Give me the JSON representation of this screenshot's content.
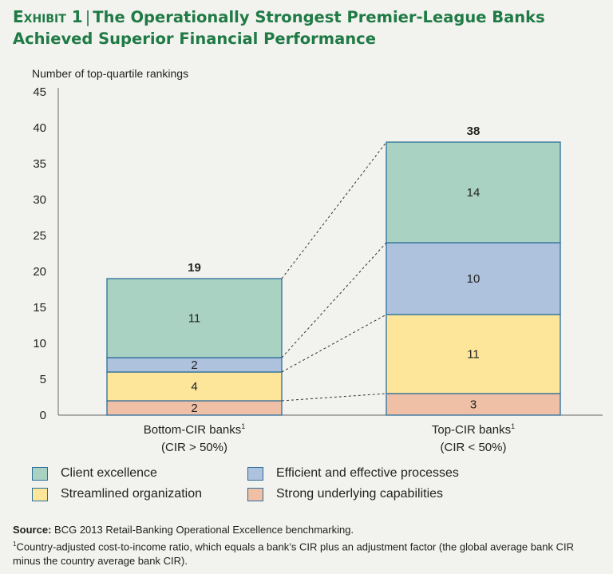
{
  "title": {
    "exhibit": "Exhibit 1",
    "separator": "|",
    "text": "The Operationally Strongest Premier-League Banks Achieved Superior Financial Performance"
  },
  "colors": {
    "client": "#a9d2c3",
    "processes": "#aec2de",
    "organization": "#fde69a",
    "capabilities": "#efbfa6",
    "outline": "#2e6f9a",
    "title": "#1f7a45"
  },
  "chart_data": {
    "type": "bar",
    "stacked": true,
    "ylabel": "Number of top-quartile rankings",
    "ylim": [
      0,
      45
    ],
    "yticks": [
      0,
      5,
      10,
      15,
      20,
      25,
      30,
      35,
      40,
      45
    ],
    "categories": [
      {
        "label": "Bottom-CIR banks",
        "note": "1",
        "sublabel": "(CIR > 50%)",
        "total": "19"
      },
      {
        "label": "Top-CIR banks",
        "note": "1",
        "sublabel": "(CIR < 50%)",
        "total": "38"
      }
    ],
    "series": [
      {
        "name": "Strong underlying capabilities",
        "key": "capabilities",
        "values": [
          2,
          3
        ],
        "labels": [
          "2",
          "3"
        ]
      },
      {
        "name": "Streamlined organization",
        "key": "organization",
        "values": [
          4,
          11
        ],
        "labels": [
          "4",
          "11"
        ]
      },
      {
        "name": "Efficient and effective processes",
        "key": "processes",
        "values": [
          2,
          10
        ],
        "labels": [
          "2",
          "10"
        ]
      },
      {
        "name": "Client excellence",
        "key": "client",
        "values": [
          11,
          14
        ],
        "labels": [
          "11",
          "14"
        ]
      }
    ]
  },
  "legend": [
    {
      "label": "Client excellence",
      "key": "client"
    },
    {
      "label": "Efficient and effective processes",
      "key": "processes"
    },
    {
      "label": "Streamlined organization",
      "key": "organization"
    },
    {
      "label": "Strong underlying capabilities",
      "key": "capabilities"
    }
  ],
  "source": {
    "label": "Source:",
    "text": "BCG 2013 Retail-Banking Operational Excellence benchmarking.",
    "footnote_mark": "1",
    "footnote": "Country-adjusted cost-to-income ratio, which equals a bank’s CIR plus an adjustment factor (the global average bank CIR minus the country average bank CIR)."
  }
}
